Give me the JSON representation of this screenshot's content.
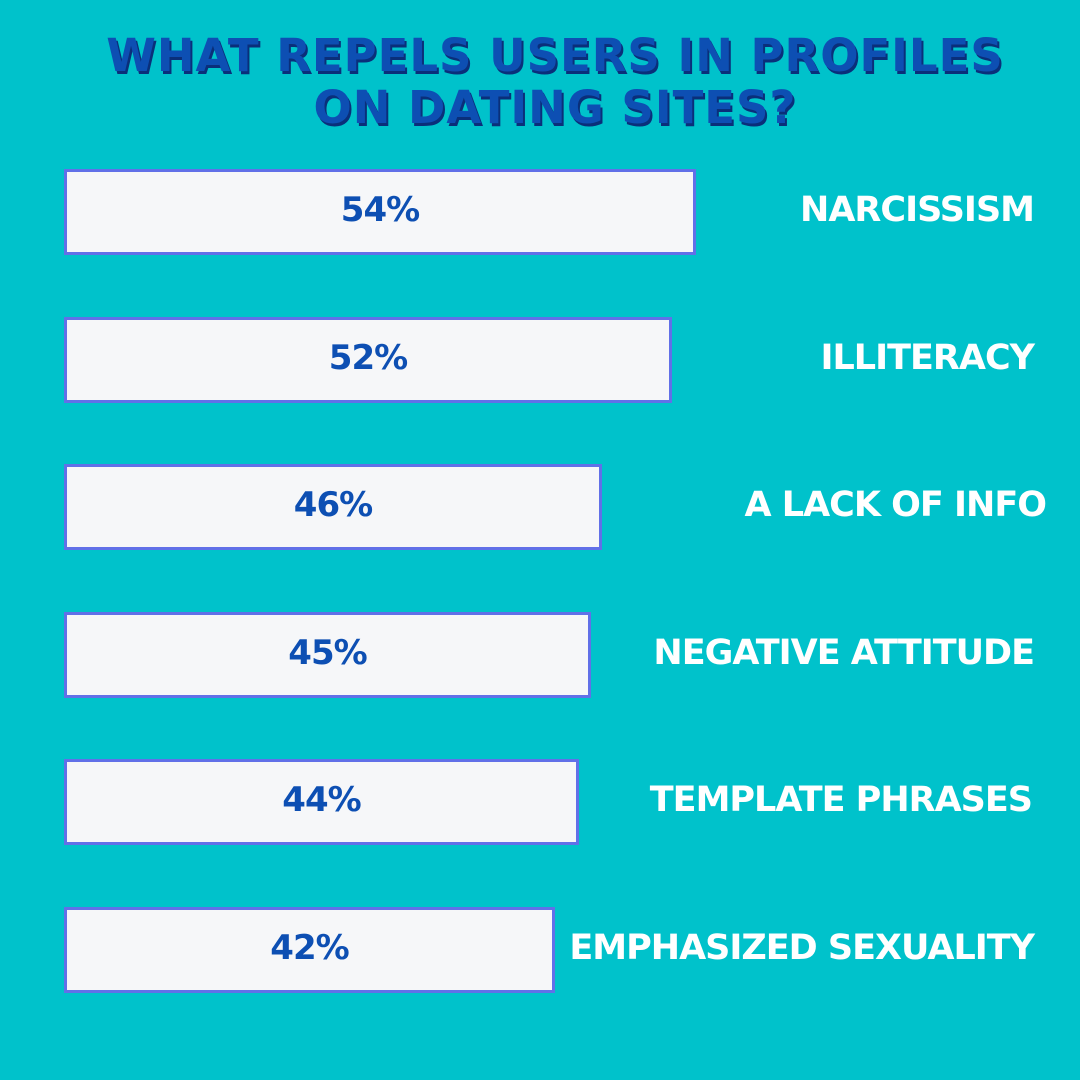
{
  "title": "WHAT REPELS USERS IN PROFILES ON DATING SITES?",
  "chart_data": {
    "type": "bar",
    "orientation": "horizontal",
    "title": "WHAT REPELS USERS IN PROFILES ON DATING SITES?",
    "categories": [
      "NARCISSISM",
      "ILLITERACY",
      "A LACK OF INFO",
      "NEGATIVE ATTITUDE",
      "TEMPLATE PHRASES",
      "EMPHASIZED SEXUALITY"
    ],
    "values": [
      54,
      52,
      46,
      45,
      44,
      42
    ],
    "value_labels": [
      "54%",
      "52%",
      "46%",
      "45%",
      "44%",
      "42%"
    ],
    "xlim": [
      0,
      100
    ],
    "grid": false,
    "legend": "none",
    "colors": {
      "background": "#00c2cb",
      "bar_fill": "#f6f7f9",
      "bar_border": "#6170e8",
      "value_text": "#0d4fb3",
      "category_text": "#ffffff",
      "title_text": "#0d4fb3"
    }
  }
}
